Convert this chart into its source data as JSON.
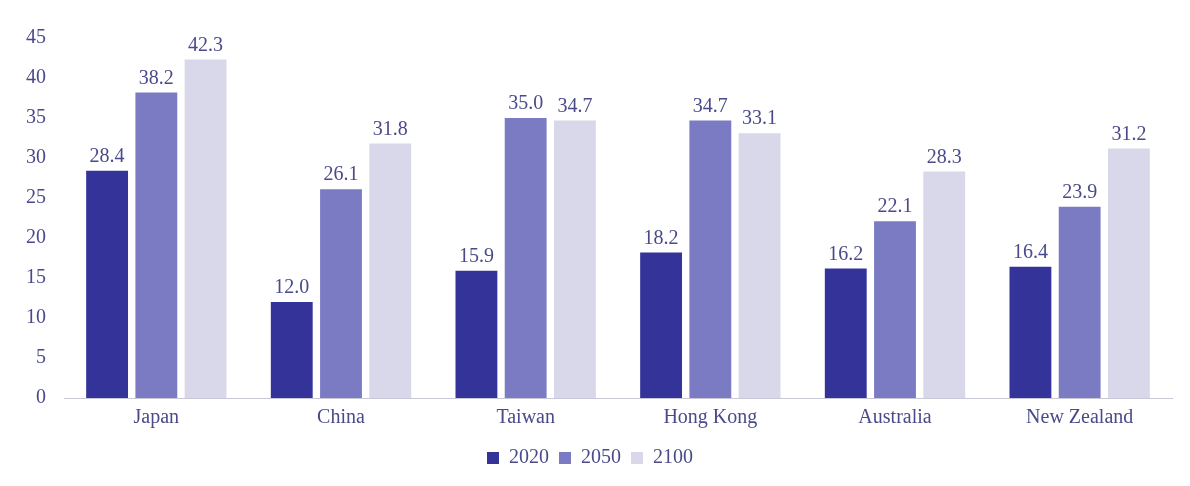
{
  "chart_data": {
    "type": "bar",
    "categories": [
      "Japan",
      "China",
      "Taiwan",
      "Hong Kong",
      "Australia",
      "New Zealand"
    ],
    "series": [
      {
        "name": "2020",
        "color": "#333399",
        "values": [
          28.4,
          12.0,
          15.9,
          18.2,
          16.2,
          16.4
        ],
        "value_labels": [
          "28.4",
          "12.0",
          "15.9",
          "18.2",
          "16.2",
          "16.4"
        ]
      },
      {
        "name": "2050",
        "color": "#7b7bc4",
        "values": [
          38.2,
          26.1,
          35.0,
          34.7,
          22.1,
          23.9
        ],
        "value_labels": [
          "38.2",
          "26.1",
          "35.0",
          "34.7",
          "22.1",
          "23.9"
        ]
      },
      {
        "name": "2100",
        "color": "#d8d8ea",
        "values": [
          42.3,
          31.8,
          34.7,
          33.1,
          28.3,
          31.2
        ],
        "value_labels": [
          "42.3",
          "31.8",
          "34.7",
          "33.1",
          "28.3",
          "31.2"
        ]
      }
    ],
    "ylim": [
      0,
      45
    ],
    "yticks": [
      0,
      5,
      10,
      15,
      20,
      25,
      30,
      35,
      40,
      45
    ],
    "grid": false,
    "legend": "bottom"
  }
}
